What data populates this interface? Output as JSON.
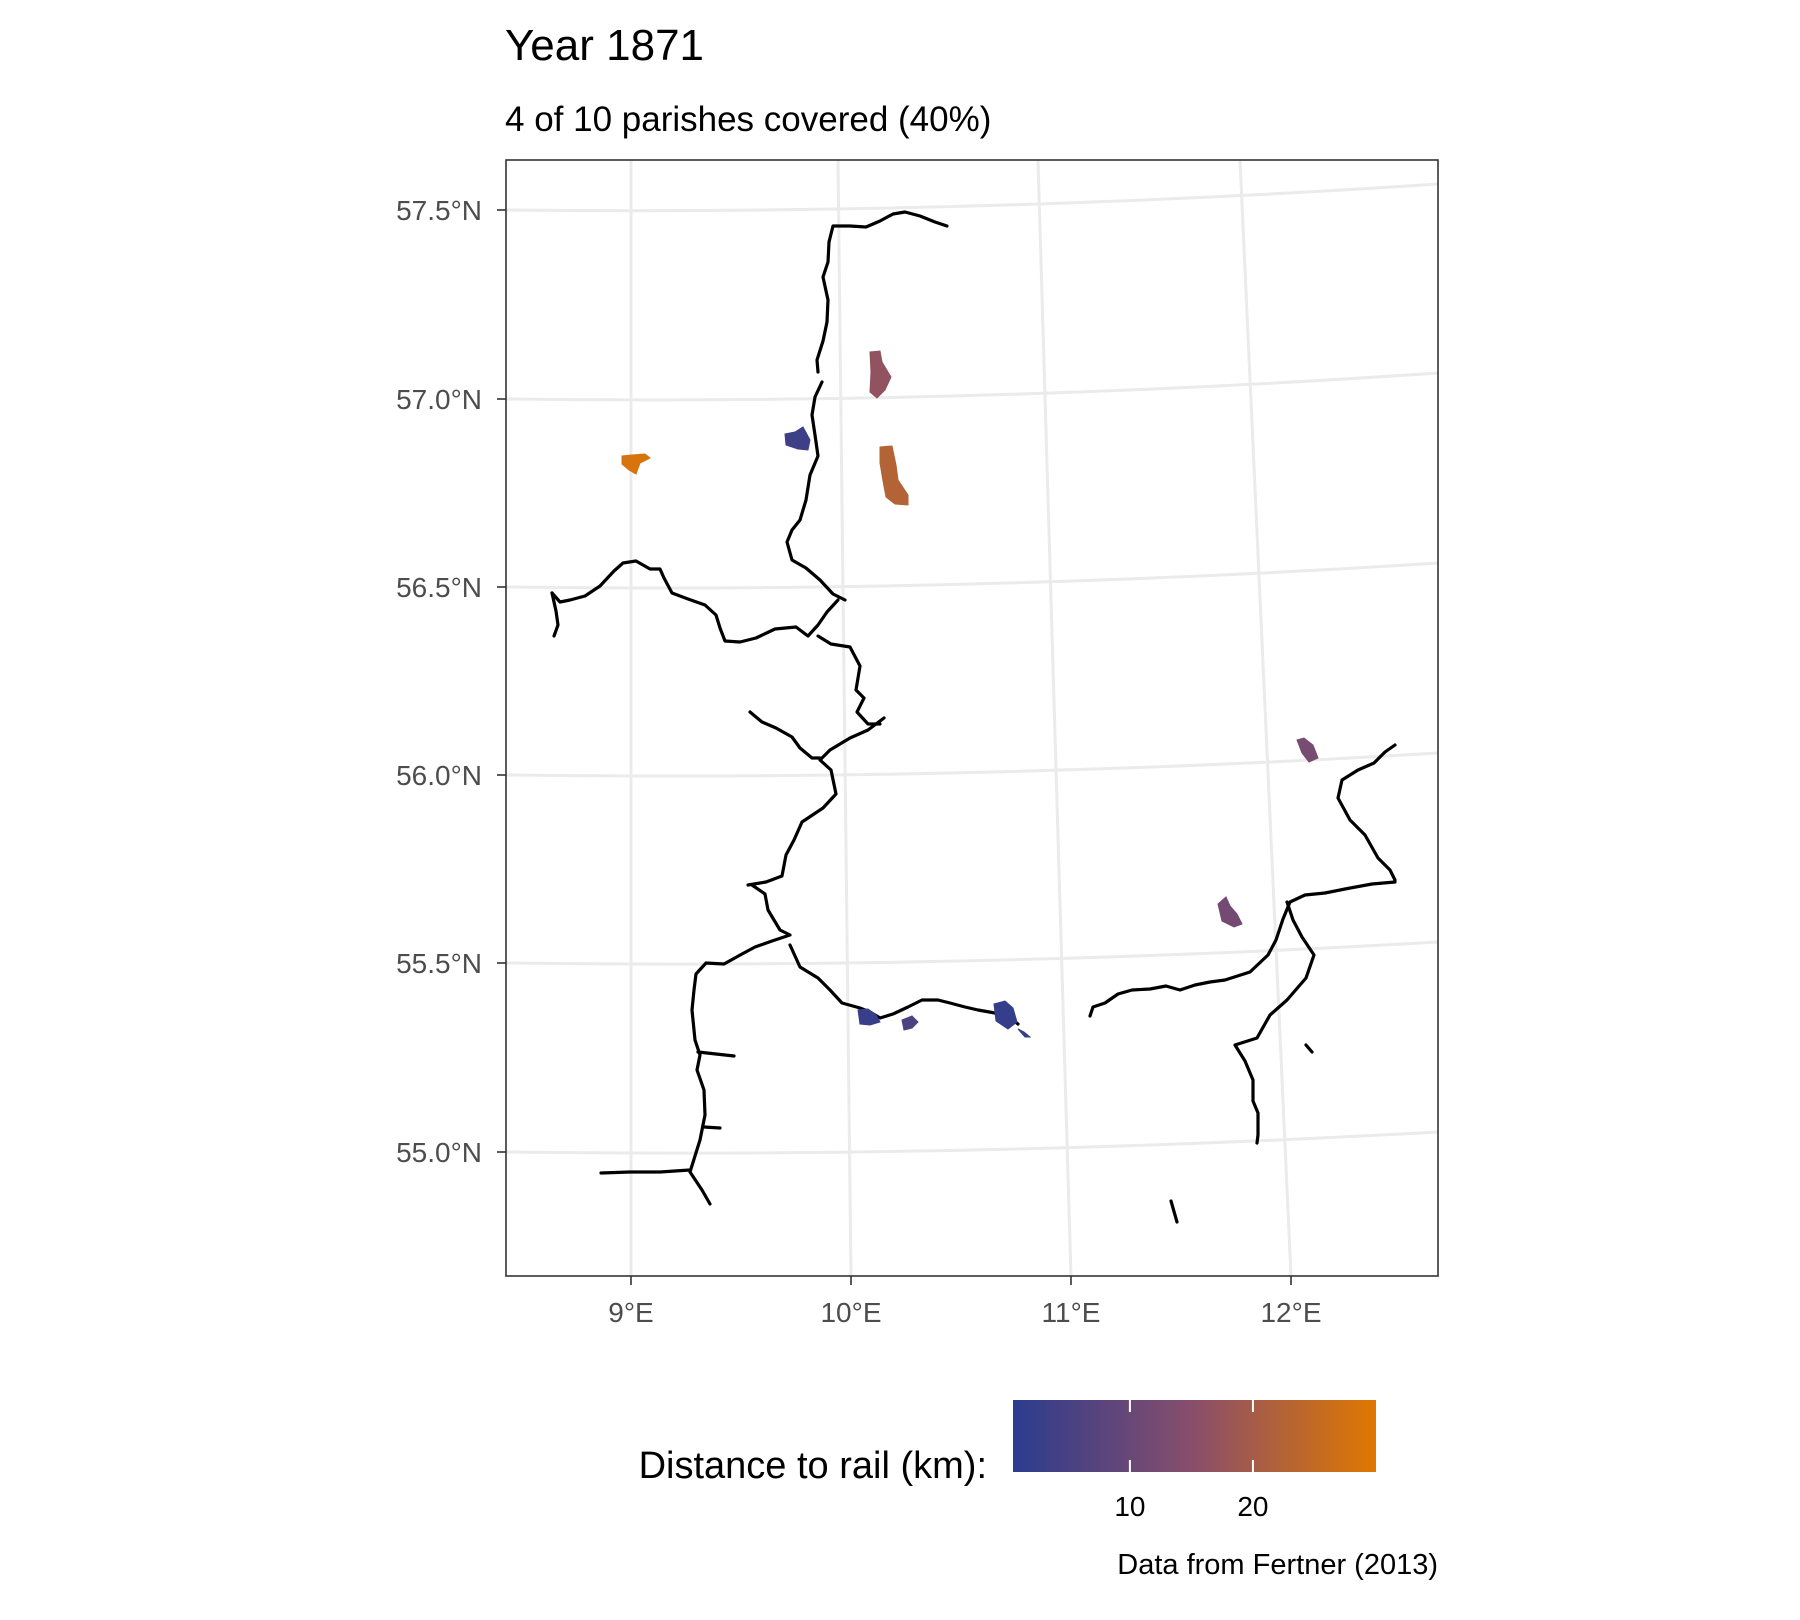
{
  "title": "Year 1871",
  "subtitle": "4 of 10 parishes covered (40%)",
  "caption": "Data from Fertner (2013)",
  "colors": {
    "rail": "#000000",
    "grid": "#ebebeb",
    "panel_border": "#333333",
    "scale_low": "#2b3c8e",
    "scale_mid": "#8a4e6a",
    "scale_high": "#e07800"
  },
  "map": {
    "y_ticks": [
      "57.5°N",
      "57.0°N",
      "56.5°N",
      "56.0°N",
      "55.5°N",
      "55.0°N"
    ],
    "x_ticks": [
      "9°E",
      "10°E",
      "11°E",
      "12°E"
    ],
    "parishes": [
      {
        "distance_km": 28.5
      },
      {
        "distance_km": 3.5
      },
      {
        "distance_km": 16.5
      },
      {
        "distance_km": 22.5
      },
      {
        "distance_km": 12.5
      },
      {
        "distance_km": 12.0
      },
      {
        "distance_km": 2.5
      },
      {
        "distance_km": 6.0
      },
      {
        "distance_km": 2.0
      },
      {
        "distance_km": 2.2
      }
    ]
  },
  "legend": {
    "title": "Distance to rail (km):",
    "ticks": [
      "10",
      "20"
    ],
    "range": [
      0.5,
      30
    ]
  }
}
